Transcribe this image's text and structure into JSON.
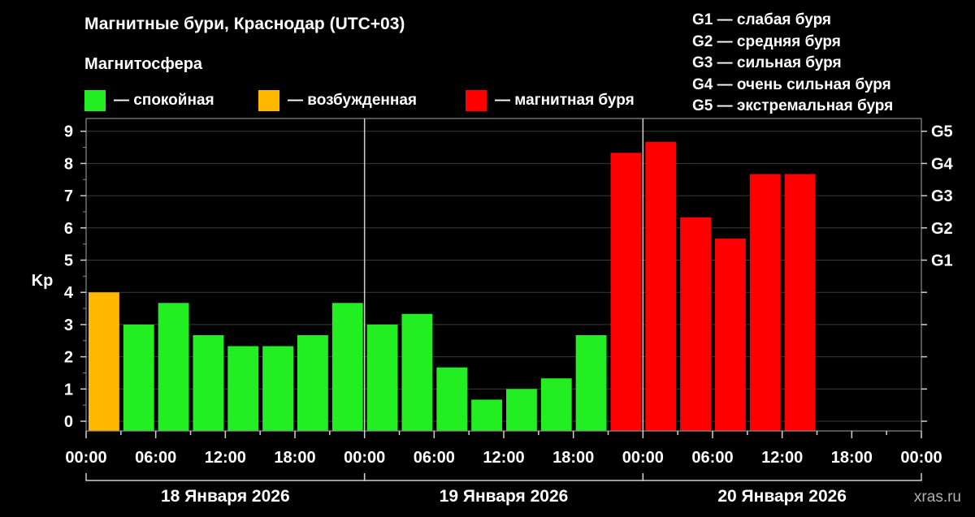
{
  "title": "Магнитные бури, Краснодар (UTC+03)",
  "subtitle": "Магнитосфера",
  "legend": [
    {
      "label": "— спокойная",
      "color": "#22ee22"
    },
    {
      "label": "— возбужденная",
      "color": "#ffb800"
    },
    {
      "label": "— магнитная буря",
      "color": "#ff0000"
    }
  ],
  "gscale": [
    "G1 — слабая буря",
    "G2 — средняя буря",
    "G3 — сильная буря",
    "G4 — очень сильная буря",
    "G5 — экстремальная буря"
  ],
  "watermark": "xras.ru",
  "chart_data": {
    "type": "bar",
    "ylabel": "Kp",
    "ylim": [
      -0.3,
      9.3
    ],
    "yticks": [
      0,
      1,
      2,
      3,
      4,
      5,
      6,
      7,
      8,
      9
    ],
    "right_axis_labels": [
      {
        "value": 5,
        "label": "G1"
      },
      {
        "value": 6,
        "label": "G2"
      },
      {
        "value": 7,
        "label": "G3"
      },
      {
        "value": 8,
        "label": "G4"
      },
      {
        "value": 9,
        "label": "G5"
      }
    ],
    "xticks": [
      "00:00",
      "06:00",
      "12:00",
      "18:00",
      "00:00",
      "06:00",
      "12:00",
      "18:00",
      "00:00",
      "06:00",
      "12:00",
      "18:00",
      "00:00"
    ],
    "days": [
      "18 Января 2026",
      "19 Января 2026",
      "20 Января 2026"
    ],
    "bar_interval_hours": 3,
    "values": [
      4.0,
      3.0,
      3.67,
      2.67,
      2.33,
      2.33,
      2.67,
      3.67,
      3.0,
      3.33,
      1.67,
      0.67,
      1.0,
      1.33,
      2.67,
      8.33,
      8.67,
      6.33,
      5.67,
      7.67,
      7.67
    ],
    "colors": {
      "calm": "#22ee22",
      "excited": "#ffb800",
      "storm": "#ff0000"
    },
    "grid": true
  }
}
